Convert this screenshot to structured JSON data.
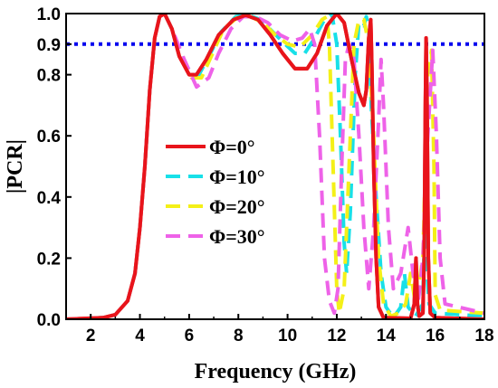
{
  "chart_data": {
    "type": "line",
    "xlabel": "Frequency (GHz)",
    "ylabel": "|PCR|",
    "xlim": [
      1,
      18
    ],
    "ylim": [
      0,
      1.0
    ],
    "xticks": [
      2,
      4,
      6,
      8,
      10,
      12,
      14,
      16,
      18
    ],
    "yticks": [
      0.0,
      0.2,
      0.4,
      0.6,
      0.8,
      0.9,
      1.0
    ],
    "ytick_labels": [
      "0.0",
      "0.2",
      "0.4",
      "0.6",
      "0.8",
      "0.9",
      "1.0"
    ],
    "legend_position": "center",
    "threshold": {
      "y": 0.9,
      "color": "#0000ee",
      "style": "dotted"
    },
    "series": [
      {
        "name": "Φ=0°",
        "color": "#e8141b",
        "style": "solid",
        "points": [
          [
            1,
            0
          ],
          [
            2.5,
            0.005
          ],
          [
            3,
            0.015
          ],
          [
            3.5,
            0.06
          ],
          [
            3.8,
            0.15
          ],
          [
            4,
            0.3
          ],
          [
            4.2,
            0.5
          ],
          [
            4.4,
            0.75
          ],
          [
            4.6,
            0.92
          ],
          [
            4.8,
            0.99
          ],
          [
            5,
            1.0
          ],
          [
            5.3,
            0.95
          ],
          [
            5.6,
            0.86
          ],
          [
            6,
            0.8
          ],
          [
            6.3,
            0.8
          ],
          [
            6.7,
            0.85
          ],
          [
            7.2,
            0.93
          ],
          [
            7.8,
            0.98
          ],
          [
            8.3,
            0.995
          ],
          [
            8.8,
            0.98
          ],
          [
            9.3,
            0.93
          ],
          [
            9.8,
            0.87
          ],
          [
            10.3,
            0.82
          ],
          [
            10.8,
            0.82
          ],
          [
            11.2,
            0.87
          ],
          [
            11.6,
            0.96
          ],
          [
            12,
            1.0
          ],
          [
            12.3,
            0.97
          ],
          [
            12.6,
            0.85
          ],
          [
            12.9,
            0.74
          ],
          [
            13.1,
            0.7
          ],
          [
            13.2,
            0.75
          ],
          [
            13.3,
            0.92
          ],
          [
            13.38,
            0.98
          ],
          [
            13.42,
            0.85
          ],
          [
            13.5,
            0.5
          ],
          [
            13.6,
            0.2
          ],
          [
            13.7,
            0.04
          ],
          [
            13.9,
            0.005
          ],
          [
            15,
            0.003
          ],
          [
            15.15,
            0.05
          ],
          [
            15.22,
            0.2
          ],
          [
            15.28,
            0.05
          ],
          [
            15.35,
            0.01
          ],
          [
            15.5,
            0.02
          ],
          [
            15.55,
            0.2
          ],
          [
            15.6,
            0.7
          ],
          [
            15.63,
            0.92
          ],
          [
            15.67,
            0.7
          ],
          [
            15.72,
            0.2
          ],
          [
            15.8,
            0.02
          ],
          [
            16,
            0.005
          ],
          [
            18,
            0
          ]
        ]
      },
      {
        "name": "Φ=10°",
        "color": "#18e0e8",
        "style": "dashed",
        "points": [
          [
            1,
            0
          ],
          [
            2.5,
            0.005
          ],
          [
            3,
            0.015
          ],
          [
            3.5,
            0.06
          ],
          [
            3.8,
            0.15
          ],
          [
            4,
            0.3
          ],
          [
            4.2,
            0.5
          ],
          [
            4.4,
            0.75
          ],
          [
            4.6,
            0.92
          ],
          [
            4.8,
            0.99
          ],
          [
            5,
            1.0
          ],
          [
            5.3,
            0.95
          ],
          [
            5.7,
            0.86
          ],
          [
            6.1,
            0.8
          ],
          [
            6.4,
            0.8
          ],
          [
            6.8,
            0.86
          ],
          [
            7.3,
            0.94
          ],
          [
            7.9,
            0.99
          ],
          [
            8.4,
            0.995
          ],
          [
            8.9,
            0.98
          ],
          [
            9.4,
            0.94
          ],
          [
            9.9,
            0.9
          ],
          [
            10.3,
            0.87
          ],
          [
            10.7,
            0.87
          ],
          [
            11.1,
            0.92
          ],
          [
            11.5,
            0.98
          ],
          [
            11.8,
            1.0
          ],
          [
            12,
            0.9
          ],
          [
            12.15,
            0.6
          ],
          [
            12.3,
            0.25
          ],
          [
            12.4,
            0.15
          ],
          [
            12.55,
            0.35
          ],
          [
            12.75,
            0.8
          ],
          [
            12.9,
            0.97
          ],
          [
            13.1,
            0.96
          ],
          [
            13.2,
            0.99
          ],
          [
            13.3,
            0.95
          ],
          [
            13.4,
            0.7
          ],
          [
            13.6,
            0.4
          ],
          [
            13.8,
            0.15
          ],
          [
            14,
            0.04
          ],
          [
            14.3,
            0.005
          ],
          [
            14.6,
            0.04
          ],
          [
            14.75,
            0.15
          ],
          [
            14.9,
            0.04
          ],
          [
            15.2,
            0.01
          ],
          [
            15.5,
            0.05
          ],
          [
            15.6,
            0.4
          ],
          [
            15.65,
            0.18
          ],
          [
            15.75,
            0.05
          ],
          [
            16,
            0.02
          ],
          [
            18,
            0.01
          ]
        ]
      },
      {
        "name": "Φ=20°",
        "color": "#f4f018",
        "style": "dashed",
        "points": [
          [
            1,
            0
          ],
          [
            2.5,
            0.005
          ],
          [
            3,
            0.015
          ],
          [
            3.5,
            0.06
          ],
          [
            3.8,
            0.15
          ],
          [
            4,
            0.3
          ],
          [
            4.2,
            0.5
          ],
          [
            4.4,
            0.75
          ],
          [
            4.6,
            0.92
          ],
          [
            4.8,
            0.99
          ],
          [
            5,
            1.0
          ],
          [
            5.3,
            0.95
          ],
          [
            5.7,
            0.86
          ],
          [
            6.1,
            0.79
          ],
          [
            6.5,
            0.79
          ],
          [
            6.9,
            0.86
          ],
          [
            7.4,
            0.95
          ],
          [
            8,
            0.99
          ],
          [
            8.5,
            0.99
          ],
          [
            9,
            0.97
          ],
          [
            9.5,
            0.93
          ],
          [
            10,
            0.9
          ],
          [
            10.5,
            0.89
          ],
          [
            11,
            0.93
          ],
          [
            11.4,
            0.98
          ],
          [
            11.6,
            0.99
          ],
          [
            11.7,
            0.9
          ],
          [
            11.85,
            0.5
          ],
          [
            12,
            0.1
          ],
          [
            12.1,
            0.02
          ],
          [
            12.3,
            0.1
          ],
          [
            12.5,
            0.5
          ],
          [
            12.7,
            0.9
          ],
          [
            12.9,
            0.98
          ],
          [
            13.1,
            0.98
          ],
          [
            13.3,
            0.9
          ],
          [
            13.5,
            0.6
          ],
          [
            13.7,
            0.2
          ],
          [
            13.9,
            0.05
          ],
          [
            14.2,
            0.01
          ],
          [
            14.5,
            0.02
          ],
          [
            14.8,
            0.05
          ],
          [
            15,
            0.15
          ],
          [
            15.2,
            0.05
          ],
          [
            15.5,
            0.2
          ],
          [
            15.7,
            0.8
          ],
          [
            15.85,
            0.88
          ],
          [
            15.95,
            0.5
          ],
          [
            16,
            0.08
          ],
          [
            16.2,
            0.03
          ],
          [
            18,
            0.02
          ]
        ]
      },
      {
        "name": "Φ=30°",
        "color": "#ee62e8",
        "style": "dashed",
        "points": [
          [
            1,
            0
          ],
          [
            2.5,
            0.005
          ],
          [
            3,
            0.015
          ],
          [
            3.5,
            0.06
          ],
          [
            3.8,
            0.15
          ],
          [
            4,
            0.3
          ],
          [
            4.2,
            0.5
          ],
          [
            4.4,
            0.75
          ],
          [
            4.6,
            0.92
          ],
          [
            4.8,
            0.99
          ],
          [
            5,
            1.0
          ],
          [
            5.3,
            0.95
          ],
          [
            5.8,
            0.85
          ],
          [
            6.3,
            0.76
          ],
          [
            6.8,
            0.79
          ],
          [
            7.2,
            0.87
          ],
          [
            7.7,
            0.95
          ],
          [
            8.2,
            0.99
          ],
          [
            8.7,
            0.99
          ],
          [
            9.2,
            0.97
          ],
          [
            9.7,
            0.93
          ],
          [
            10.2,
            0.91
          ],
          [
            10.6,
            0.92
          ],
          [
            10.9,
            0.95
          ],
          [
            11.1,
            0.9
          ],
          [
            11.3,
            0.6
          ],
          [
            11.5,
            0.2
          ],
          [
            11.7,
            0.06
          ],
          [
            11.9,
            0.02
          ],
          [
            12.05,
            0.1
          ],
          [
            12.2,
            0.5
          ],
          [
            12.35,
            0.85
          ],
          [
            12.5,
            0.9
          ],
          [
            12.7,
            0.85
          ],
          [
            12.9,
            0.6
          ],
          [
            13.1,
            0.3
          ],
          [
            13.3,
            0.1
          ],
          [
            13.5,
            0.3
          ],
          [
            13.7,
            0.65
          ],
          [
            13.8,
            0.85
          ],
          [
            13.9,
            0.7
          ],
          [
            14.1,
            0.3
          ],
          [
            14.3,
            0.1
          ],
          [
            14.6,
            0.15
          ],
          [
            14.9,
            0.3
          ],
          [
            15.1,
            0.15
          ],
          [
            15.3,
            0.05
          ],
          [
            15.5,
            0.2
          ],
          [
            15.7,
            0.6
          ],
          [
            15.9,
            0.88
          ],
          [
            16.05,
            0.6
          ],
          [
            16.2,
            0.2
          ],
          [
            16.4,
            0.05
          ],
          [
            18,
            0.02
          ]
        ]
      }
    ]
  }
}
